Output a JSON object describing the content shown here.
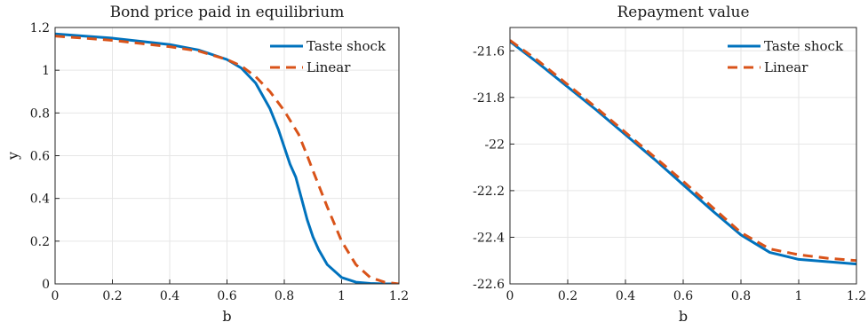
{
  "chart_data": [
    {
      "type": "line",
      "title": "Bond price paid in equilibrium",
      "xlabel": "b",
      "ylabel": "y",
      "xlim": [
        0,
        1.2
      ],
      "ylim": [
        0,
        1.2
      ],
      "xticks": [
        "0",
        "0.2",
        "0.4",
        "0.6",
        "0.8",
        "1",
        "1.2"
      ],
      "yticks": [
        "0",
        "0.2",
        "0.4",
        "0.6",
        "0.8",
        "1",
        "1.2"
      ],
      "grid": true,
      "legend_position": "top-right",
      "series": [
        {
          "name": "Taste shock",
          "color": "#0072BD",
          "style": "solid",
          "points": [
            [
              0,
              1.17
            ],
            [
              0.1,
              1.16
            ],
            [
              0.2,
              1.15
            ],
            [
              0.3,
              1.135
            ],
            [
              0.4,
              1.12
            ],
            [
              0.5,
              1.095
            ],
            [
              0.6,
              1.05
            ],
            [
              0.65,
              1.01
            ],
            [
              0.7,
              0.94
            ],
            [
              0.75,
              0.82
            ],
            [
              0.78,
              0.72
            ],
            [
              0.8,
              0.64
            ],
            [
              0.82,
              0.56
            ],
            [
              0.84,
              0.5
            ],
            [
              0.86,
              0.4
            ],
            [
              0.88,
              0.3
            ],
            [
              0.9,
              0.22
            ],
            [
              0.92,
              0.16
            ],
            [
              0.95,
              0.09
            ],
            [
              1.0,
              0.03
            ],
            [
              1.05,
              0.008
            ],
            [
              1.1,
              0.002
            ],
            [
              1.15,
              0.0
            ],
            [
              1.2,
              0.0
            ]
          ]
        },
        {
          "name": "Linear",
          "color": "#D95319",
          "style": "dashed",
          "points": [
            [
              0,
              1.16
            ],
            [
              0.1,
              1.15
            ],
            [
              0.2,
              1.14
            ],
            [
              0.3,
              1.125
            ],
            [
              0.4,
              1.11
            ],
            [
              0.5,
              1.09
            ],
            [
              0.6,
              1.05
            ],
            [
              0.65,
              1.02
            ],
            [
              0.7,
              0.97
            ],
            [
              0.75,
              0.9
            ],
            [
              0.8,
              0.81
            ],
            [
              0.85,
              0.7
            ],
            [
              0.88,
              0.6
            ],
            [
              0.9,
              0.53
            ],
            [
              0.95,
              0.36
            ],
            [
              1.0,
              0.2
            ],
            [
              1.05,
              0.09
            ],
            [
              1.1,
              0.03
            ],
            [
              1.15,
              0.008
            ],
            [
              1.2,
              0.0
            ]
          ]
        }
      ]
    },
    {
      "type": "line",
      "title": "Repayment value",
      "xlabel": "b",
      "ylabel": "",
      "xlim": [
        0,
        1.2
      ],
      "ylim": [
        -22.6,
        -21.5
      ],
      "xticks": [
        "0",
        "0.2",
        "0.4",
        "0.6",
        "0.8",
        "1",
        "1.2"
      ],
      "yticks": [
        "-21.6",
        "-21.8",
        "-22",
        "-22.2",
        "-22.4",
        "-22.6"
      ],
      "grid": true,
      "legend_position": "top-right",
      "series": [
        {
          "name": "Taste shock",
          "color": "#0072BD",
          "style": "solid",
          "points": [
            [
              0,
              -21.56
            ],
            [
              0.1,
              -21.655
            ],
            [
              0.2,
              -21.755
            ],
            [
              0.3,
              -21.855
            ],
            [
              0.4,
              -21.96
            ],
            [
              0.5,
              -22.065
            ],
            [
              0.6,
              -22.175
            ],
            [
              0.7,
              -22.285
            ],
            [
              0.8,
              -22.39
            ],
            [
              0.9,
              -22.465
            ],
            [
              1.0,
              -22.495
            ],
            [
              1.1,
              -22.505
            ],
            [
              1.2,
              -22.515
            ]
          ]
        },
        {
          "name": "Linear",
          "color": "#D95319",
          "style": "dashed",
          "points": [
            [
              0,
              -21.555
            ],
            [
              0.1,
              -21.645
            ],
            [
              0.2,
              -21.745
            ],
            [
              0.3,
              -21.845
            ],
            [
              0.4,
              -21.95
            ],
            [
              0.5,
              -22.055
            ],
            [
              0.6,
              -22.16
            ],
            [
              0.7,
              -22.27
            ],
            [
              0.8,
              -22.38
            ],
            [
              0.9,
              -22.45
            ],
            [
              1.0,
              -22.475
            ],
            [
              1.1,
              -22.49
            ],
            [
              1.2,
              -22.5
            ]
          ]
        }
      ]
    }
  ]
}
